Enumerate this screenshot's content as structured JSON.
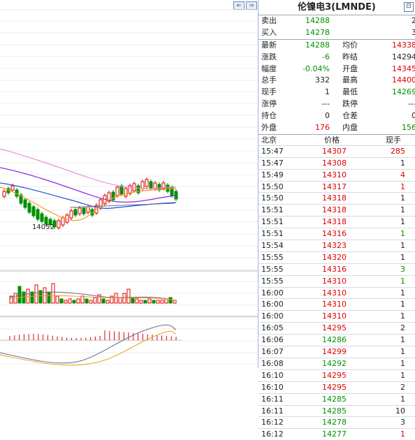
{
  "title": "伦镍电3(LMNDE)",
  "nav": {
    "left_icon": "nav-left-icon",
    "right_icon": "nav-right-icon",
    "corner_icon": "restore-icon"
  },
  "quote": {
    "sell": {
      "label": "卖出",
      "price": "14288",
      "qty": "2"
    },
    "buy": {
      "label": "买入",
      "price": "14278",
      "qty": "3"
    },
    "rows": [
      {
        "l1": "最新",
        "v1": "14288",
        "c1": "green",
        "l2": "均价",
        "v2": "14338",
        "c2": "red"
      },
      {
        "l1": "涨跌",
        "v1": "-6",
        "c1": "green",
        "l2": "昨结",
        "v2": "14294",
        "c2": "black"
      },
      {
        "l1": "幅度",
        "v1": "-0.04%",
        "c1": "green",
        "l2": "开盘",
        "v2": "14345",
        "c2": "red"
      },
      {
        "l1": "总手",
        "v1": "332",
        "c1": "black",
        "l2": "最高",
        "v2": "14400",
        "c2": "red"
      },
      {
        "l1": "现手",
        "v1": "1",
        "c1": "black",
        "l2": "最低",
        "v2": "14269",
        "c2": "green"
      },
      {
        "l1": "涨停",
        "v1": "---",
        "c1": "black",
        "l2": "跌停",
        "v2": "---",
        "c2": "black"
      },
      {
        "l1": "持仓",
        "v1": "0",
        "c1": "black",
        "l2": "仓差",
        "v2": "0",
        "c2": "black"
      },
      {
        "l1": "外盘",
        "v1": "176",
        "c1": "red",
        "l2": "内盘",
        "v2": "156",
        "c2": "green"
      }
    ]
  },
  "ticks_header": {
    "time": "北京",
    "price": "价格",
    "vol": "现手"
  },
  "ticks": [
    {
      "time": "15:47",
      "price": "14307",
      "pc": "red",
      "vol": "285",
      "vc": "red"
    },
    {
      "time": "15:47",
      "price": "14308",
      "pc": "red",
      "vol": "1",
      "vc": "black"
    },
    {
      "time": "15:49",
      "price": "14310",
      "pc": "red",
      "vol": "4",
      "vc": "red"
    },
    {
      "time": "15:50",
      "price": "14317",
      "pc": "red",
      "vol": "1",
      "vc": "red"
    },
    {
      "time": "15:50",
      "price": "14318",
      "pc": "red",
      "vol": "1",
      "vc": "black"
    },
    {
      "time": "15:51",
      "price": "14318",
      "pc": "red",
      "vol": "1",
      "vc": "black"
    },
    {
      "time": "15:51",
      "price": "14318",
      "pc": "red",
      "vol": "1",
      "vc": "black"
    },
    {
      "time": "15:51",
      "price": "14316",
      "pc": "red",
      "vol": "1",
      "vc": "green"
    },
    {
      "time": "15:54",
      "price": "14323",
      "pc": "red",
      "vol": "1",
      "vc": "black"
    },
    {
      "time": "15:55",
      "price": "14320",
      "pc": "red",
      "vol": "1",
      "vc": "black"
    },
    {
      "time": "15:55",
      "price": "14316",
      "pc": "red",
      "vol": "3",
      "vc": "green"
    },
    {
      "time": "15:55",
      "price": "14310",
      "pc": "red",
      "vol": "1",
      "vc": "green"
    },
    {
      "time": "16:00",
      "price": "14310",
      "pc": "red",
      "vol": "1",
      "vc": "black"
    },
    {
      "time": "16:00",
      "price": "14310",
      "pc": "red",
      "vol": "1",
      "vc": "black"
    },
    {
      "time": "16:00",
      "price": "14310",
      "pc": "red",
      "vol": "1",
      "vc": "black"
    },
    {
      "time": "16:05",
      "price": "14295",
      "pc": "red",
      "vol": "2",
      "vc": "black"
    },
    {
      "time": "16:06",
      "price": "14286",
      "pc": "green",
      "vol": "1",
      "vc": "black"
    },
    {
      "time": "16:07",
      "price": "14299",
      "pc": "red",
      "vol": "1",
      "vc": "black"
    },
    {
      "time": "16:08",
      "price": "14292",
      "pc": "green",
      "vol": "1",
      "vc": "black"
    },
    {
      "time": "16:10",
      "price": "14295",
      "pc": "red",
      "vol": "1",
      "vc": "black"
    },
    {
      "time": "16:10",
      "price": "14295",
      "pc": "red",
      "vol": "2",
      "vc": "black"
    },
    {
      "time": "16:11",
      "price": "14285",
      "pc": "green",
      "vol": "1",
      "vc": "black"
    },
    {
      "time": "16:11",
      "price": "14285",
      "pc": "green",
      "vol": "10",
      "vc": "black"
    },
    {
      "time": "16:12",
      "price": "14278",
      "pc": "green",
      "vol": "3",
      "vc": "black"
    },
    {
      "time": "16:12",
      "price": "14277",
      "pc": "green",
      "vol": "1",
      "vc": "red"
    }
  ],
  "chart": {
    "low_label": "14052",
    "colors": {
      "up": "#e00000",
      "down": "#009000",
      "ma_pink": "#f08fd8",
      "ma_purple": "#8a2be2",
      "ma_blue": "#1f4fd1",
      "ma_orange": "#f39b1a",
      "ma_gray": "#6a6a8a"
    }
  }
}
